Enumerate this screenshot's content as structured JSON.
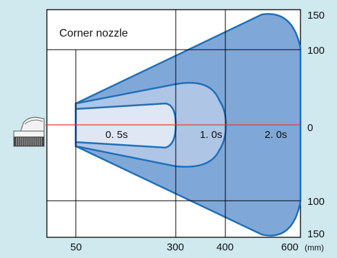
{
  "diagram": {
    "title": "Corner nozzle",
    "x_ticks": [
      "50",
      "300",
      "400",
      "600"
    ],
    "x_unit": "(mm)",
    "y_ticks_top": [
      "150",
      "100"
    ],
    "y_tick_zero": "0",
    "y_ticks_bottom": [
      "100",
      "150"
    ],
    "zone_labels": [
      "0. 5s",
      "1. 0s",
      "2. 0s"
    ],
    "colors": {
      "background": "#cfe9ee",
      "plot_area": "#ffffff",
      "zone_2_0s": "#7fa8d8",
      "zone_1_0s": "#aec5e6",
      "zone_0_5s": "#dfe6f4",
      "outline": "#1f6fb8",
      "centerline": "#e63a3a"
    },
    "icons": [
      "nozzle-icon"
    ]
  }
}
